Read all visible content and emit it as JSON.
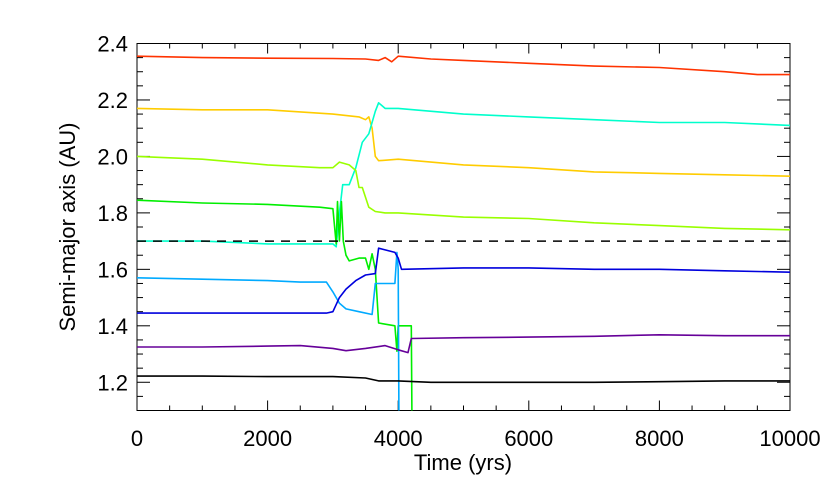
{
  "chart_data": {
    "type": "line",
    "title": "",
    "xlabel": "Time (yrs)",
    "ylabel": "Semi-major axis (AU)",
    "xlim": [
      0,
      10000
    ],
    "ylim": [
      1.1,
      2.4
    ],
    "xticks": [
      "0",
      "2000",
      "4000",
      "6000",
      "8000",
      "10000"
    ],
    "yticks": [
      "1.2",
      "1.4",
      "1.6",
      "1.8",
      "2.0",
      "2.2",
      "2.4"
    ],
    "grid": false,
    "reference_line": {
      "y": 1.7,
      "style": "dashed",
      "color": "#000000"
    },
    "series": [
      {
        "color": "#ff3300",
        "x": [
          0,
          1000,
          2000,
          3000,
          3500,
          3700,
          3800,
          3900,
          4000,
          4500,
          5000,
          6000,
          7000,
          8000,
          9000,
          9500,
          10000
        ],
        "y": [
          2.355,
          2.35,
          2.348,
          2.347,
          2.345,
          2.34,
          2.35,
          2.335,
          2.355,
          2.345,
          2.34,
          2.33,
          2.32,
          2.315,
          2.3,
          2.29,
          2.29
        ]
      },
      {
        "color": "#ffcc00",
        "x": [
          0,
          1000,
          2000,
          3000,
          3400,
          3500,
          3550,
          3600,
          3650,
          3700,
          4000,
          5000,
          6000,
          7000,
          8000,
          9000,
          10000
        ],
        "y": [
          2.17,
          2.165,
          2.165,
          2.15,
          2.14,
          2.13,
          2.14,
          2.1,
          2.0,
          1.985,
          1.99,
          1.97,
          1.96,
          1.945,
          1.94,
          1.935,
          1.93
        ]
      },
      {
        "color": "#00ffcc",
        "x": [
          0,
          1000,
          2000,
          2500,
          3000,
          3050,
          3100,
          3150,
          3250,
          3350,
          3450,
          3550,
          3650,
          3700,
          3800,
          4000,
          5000,
          6000,
          7000,
          8000,
          9000,
          10000
        ],
        "y": [
          1.7,
          1.7,
          1.69,
          1.69,
          1.69,
          1.68,
          1.8,
          1.9,
          1.9,
          1.96,
          2.05,
          2.08,
          2.16,
          2.19,
          2.17,
          2.17,
          2.15,
          2.14,
          2.13,
          2.12,
          2.12,
          2.11
        ]
      },
      {
        "color": "#99ff00",
        "x": [
          0,
          1000,
          2000,
          2800,
          3000,
          3100,
          3250,
          3350,
          3400,
          3450,
          3550,
          3650,
          3800,
          4000,
          5000,
          6000,
          7000,
          8000,
          9000,
          10000
        ],
        "y": [
          2.0,
          1.99,
          1.97,
          1.96,
          1.96,
          1.98,
          1.97,
          1.95,
          1.89,
          1.89,
          1.82,
          1.805,
          1.8,
          1.8,
          1.785,
          1.78,
          1.765,
          1.755,
          1.745,
          1.74
        ]
      },
      {
        "color": "#00ee00",
        "x": [
          0,
          1000,
          2000,
          2800,
          3000,
          3050,
          3070,
          3100,
          3130,
          3160,
          3200,
          3250,
          3400,
          3500,
          3550,
          3600,
          3650,
          3700,
          3950,
          3980,
          4000,
          4050,
          4100,
          4200,
          4210
        ],
        "y": [
          1.845,
          1.835,
          1.83,
          1.82,
          1.815,
          1.69,
          1.84,
          1.7,
          1.84,
          1.7,
          1.65,
          1.63,
          1.64,
          1.64,
          1.6,
          1.655,
          1.6,
          1.41,
          1.4,
          1.31,
          1.4,
          1.4,
          1.4,
          1.4,
          1.1
        ]
      },
      {
        "color": "#00aaff",
        "x": [
          0,
          1000,
          2000,
          2500,
          2900,
          3000,
          3100,
          3200,
          3400,
          3600,
          3650,
          3700,
          3950,
          3980,
          4000,
          4010
        ],
        "y": [
          1.57,
          1.565,
          1.56,
          1.555,
          1.555,
          1.52,
          1.48,
          1.46,
          1.45,
          1.44,
          1.55,
          1.55,
          1.55,
          1.66,
          1.6,
          1.1
        ]
      },
      {
        "color": "#0000dd",
        "x": [
          0,
          1000,
          2000,
          2900,
          3000,
          3100,
          3200,
          3350,
          3500,
          3650,
          3700,
          3950,
          4000,
          4050,
          5000,
          6000,
          7000,
          8000,
          9000,
          10000
        ],
        "y": [
          1.445,
          1.445,
          1.445,
          1.445,
          1.45,
          1.5,
          1.53,
          1.56,
          1.58,
          1.585,
          1.675,
          1.66,
          1.64,
          1.6,
          1.605,
          1.605,
          1.6,
          1.6,
          1.595,
          1.59
        ]
      },
      {
        "color": "#660099",
        "x": [
          0,
          1000,
          2000,
          2500,
          3000,
          3200,
          3500,
          3800,
          4000,
          4150,
          4200,
          5000,
          6000,
          7000,
          8000,
          9000,
          10000
        ],
        "y": [
          1.325,
          1.325,
          1.328,
          1.33,
          1.32,
          1.312,
          1.32,
          1.33,
          1.315,
          1.305,
          1.355,
          1.358,
          1.36,
          1.363,
          1.368,
          1.365,
          1.365
        ]
      },
      {
        "color": "#000000",
        "x": [
          0,
          1000,
          2000,
          3000,
          3500,
          3700,
          4000,
          4500,
          5000,
          6000,
          7000,
          8000,
          9000,
          10000
        ],
        "y": [
          1.222,
          1.222,
          1.22,
          1.22,
          1.215,
          1.205,
          1.205,
          1.2,
          1.2,
          1.2,
          1.2,
          1.202,
          1.205,
          1.205
        ]
      }
    ]
  }
}
